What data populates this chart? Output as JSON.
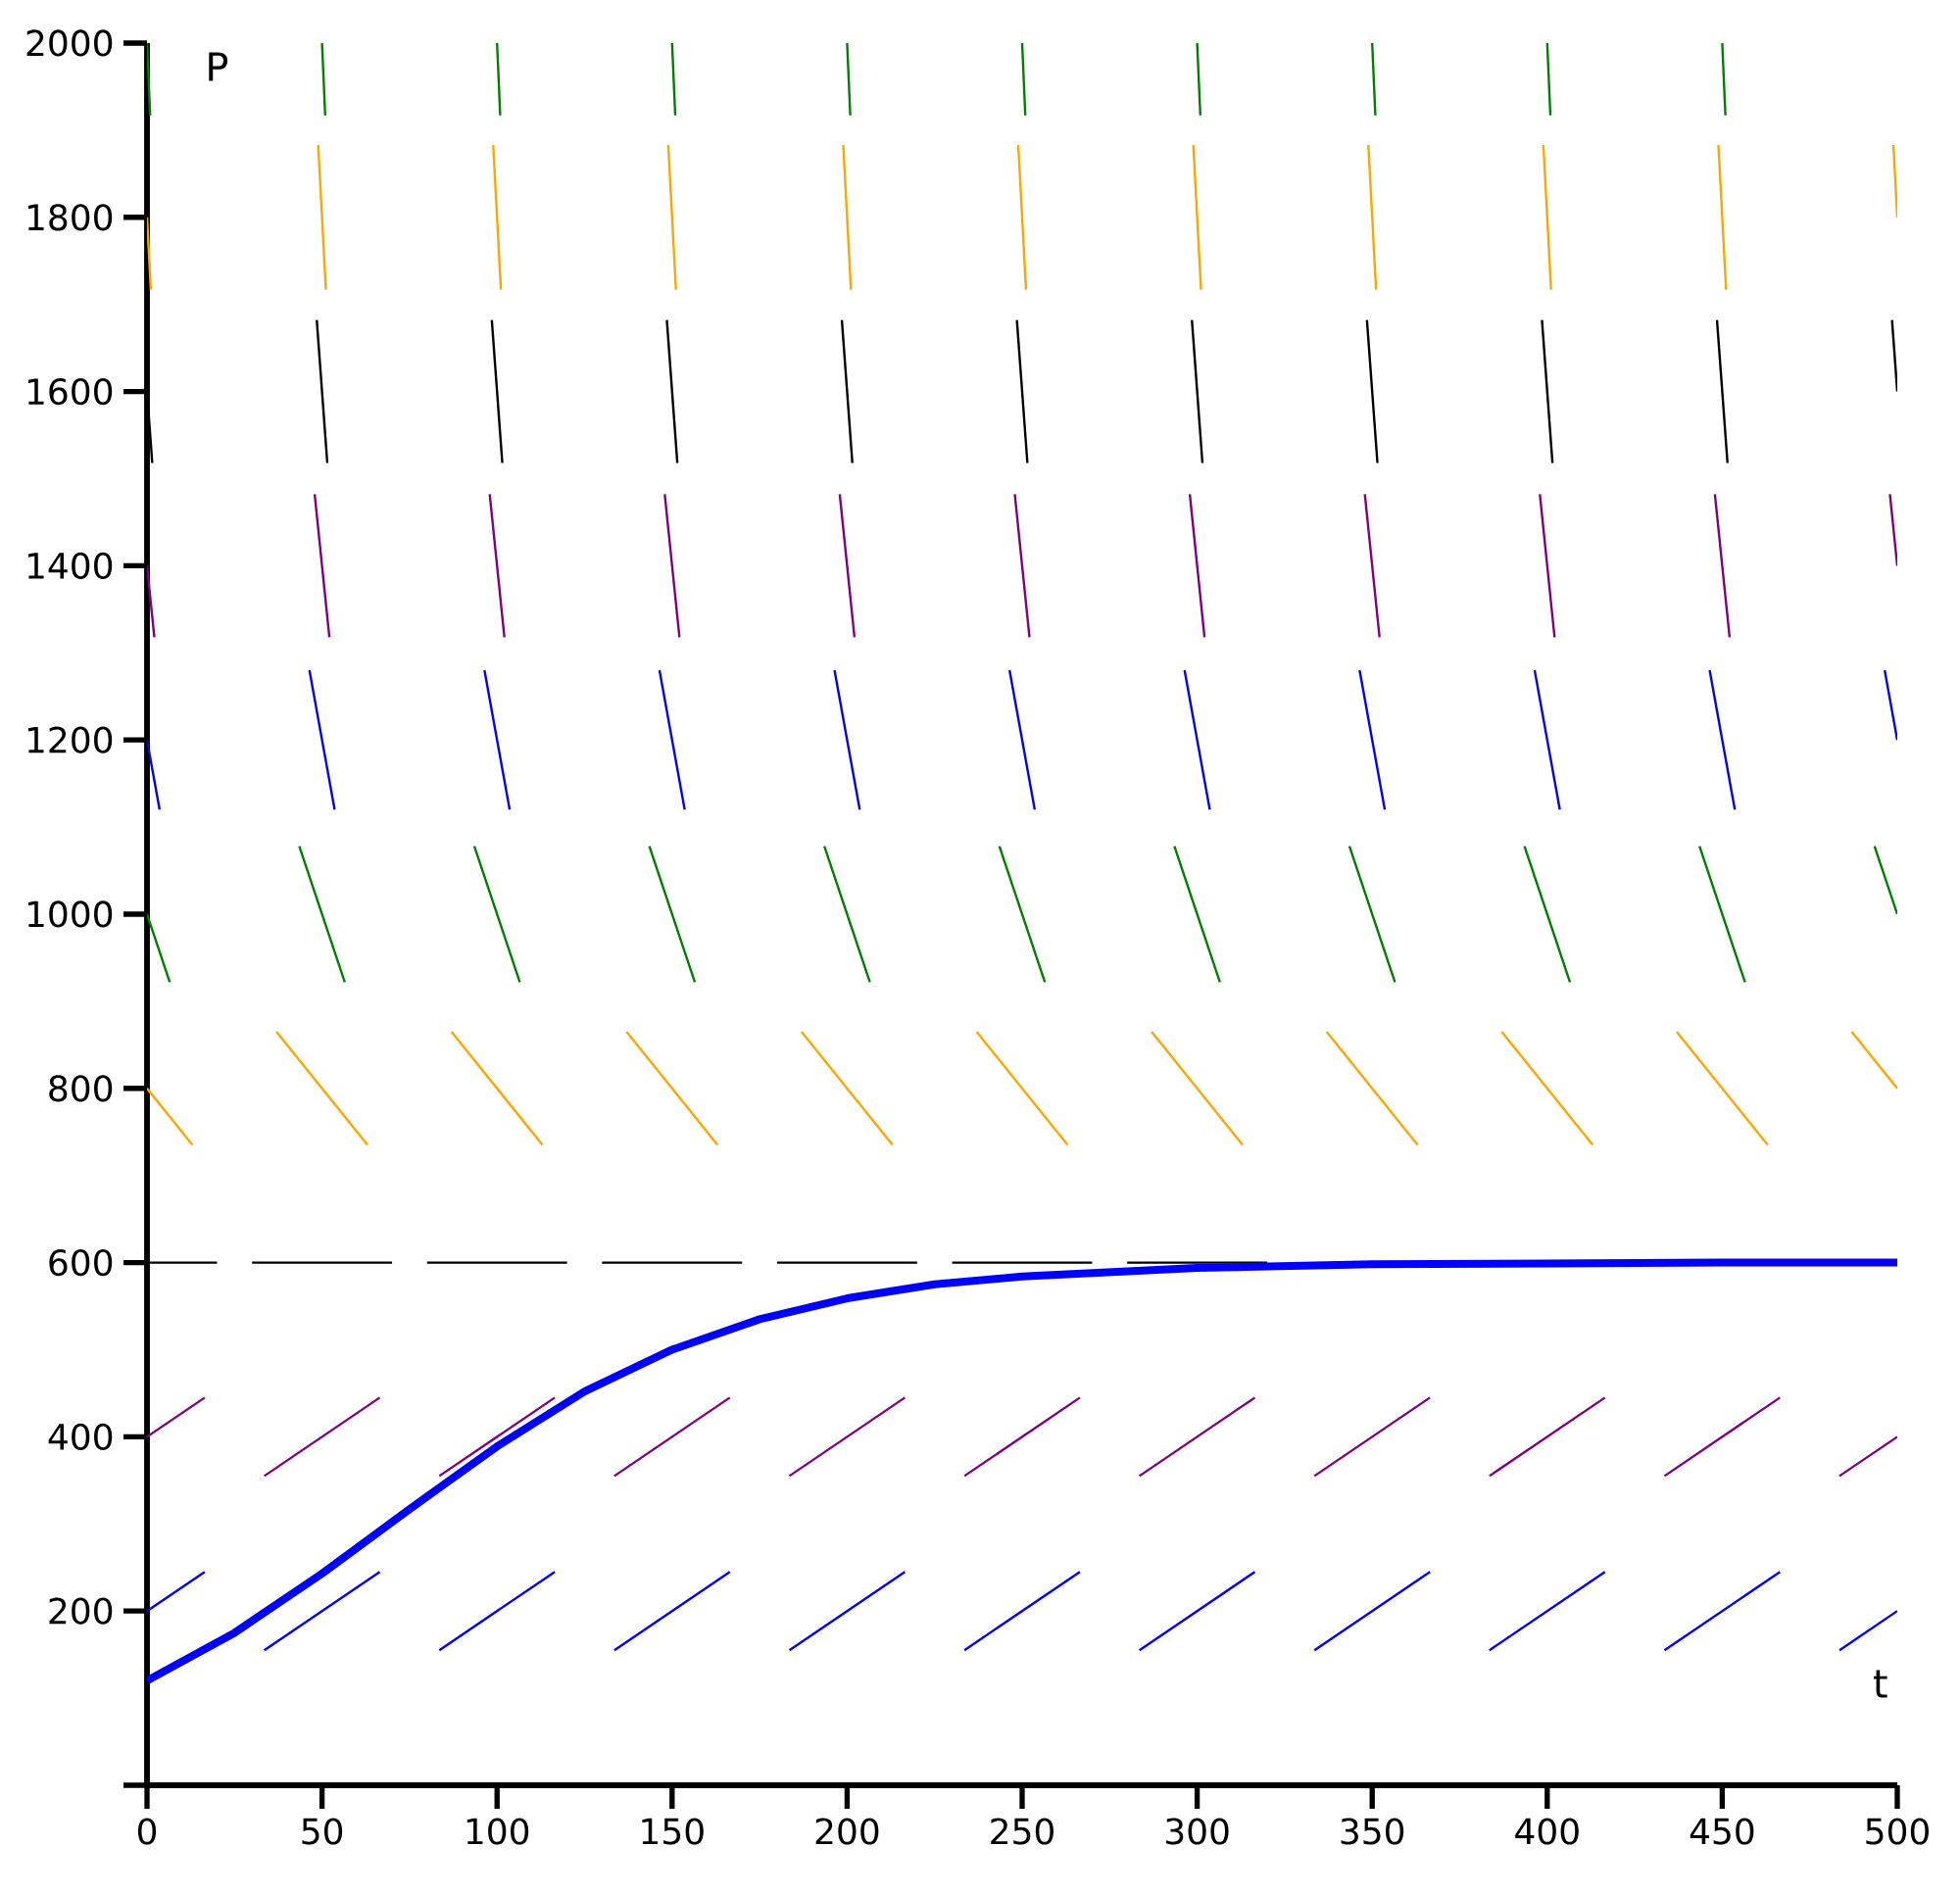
{
  "chart_data": {
    "type": "line",
    "xlabel": "t",
    "ylabel": "P",
    "xlim": [
      0,
      500
    ],
    "ylim": [
      0,
      2000
    ],
    "xticks": [
      {
        "value": 0,
        "label": "0"
      },
      50,
      100,
      150,
      200,
      250,
      300,
      350,
      400,
      450,
      500
    ],
    "yticks": [
      {
        "value": 0,
        "label": null
      },
      200,
      400,
      600,
      800,
      1000,
      1200,
      1400,
      1600,
      1800,
      2000
    ],
    "grid": false,
    "marker": "none",
    "line_style": "solid",
    "series": [
      {
        "color": "#0000ff",
        "x": [
          0,
          16.5,
          null,
          33.5,
          66.5,
          null,
          83.5,
          116.5,
          null,
          133.5,
          166.5,
          null,
          183.5,
          216.5,
          null,
          233.5,
          266.5,
          null,
          283.5,
          316.5,
          null,
          333.5,
          366.5,
          null,
          383.5,
          416.5,
          null,
          433.5,
          466.5,
          null,
          483.5,
          500
        ],
        "values": [
          200,
          245,
          null,
          155,
          245,
          null,
          155,
          245,
          null,
          155,
          245,
          null,
          155,
          245,
          null,
          155,
          245,
          null,
          155,
          245,
          null,
          155,
          245,
          null,
          155,
          245,
          null,
          155,
          245,
          null,
          155,
          200
        ]
      },
      {
        "color": "#800080",
        "x": [
          0,
          16.5,
          null,
          33.5,
          66.5,
          null,
          83.5,
          116.5,
          null,
          133.5,
          166.5,
          null,
          183.5,
          216.5,
          null,
          233.5,
          266.5,
          null,
          283.5,
          316.5,
          null,
          333.5,
          366.5,
          null,
          383.5,
          416.5,
          null,
          433.5,
          466.5,
          null,
          483.5,
          500
        ],
        "values": [
          400,
          445,
          null,
          355,
          445,
          null,
          355,
          445,
          null,
          355,
          445,
          null,
          355,
          445,
          null,
          355,
          445,
          null,
          355,
          445,
          null,
          355,
          445,
          null,
          355,
          445,
          null,
          355,
          445,
          null,
          355,
          400
        ]
      },
      {
        "color": "#000000",
        "x": [
          0,
          20,
          null,
          30,
          70,
          null,
          80,
          120,
          null,
          130,
          170,
          null,
          180,
          220,
          null,
          230,
          270,
          null,
          280,
          320
        ],
        "values": [
          600,
          600,
          null,
          600,
          600,
          null,
          600,
          600,
          null,
          600,
          600,
          null,
          600,
          600,
          null,
          600,
          600,
          null,
          600,
          600
        ]
      },
      {
        "color": "#ffa500",
        "x": [
          0,
          13,
          null,
          37,
          63,
          null,
          87,
          113,
          null,
          137,
          163,
          null,
          187,
          213,
          null,
          237,
          263,
          null,
          287,
          313,
          null,
          337,
          363,
          null,
          387,
          413,
          null,
          437,
          463,
          null,
          487,
          500
        ],
        "values": [
          800,
          735,
          null,
          865,
          735,
          null,
          865,
          735,
          null,
          865,
          735,
          null,
          865,
          735,
          null,
          865,
          735,
          null,
          865,
          735,
          null,
          865,
          735,
          null,
          865,
          735,
          null,
          865,
          735,
          null,
          865,
          800
        ]
      },
      {
        "color": "#008000",
        "x": [
          0,
          6.5,
          null,
          43.5,
          56.5,
          null,
          93.5,
          106.5,
          null,
          143.5,
          156.5,
          null,
          193.5,
          206.5,
          null,
          243.5,
          256.5,
          null,
          293.5,
          306.5,
          null,
          343.5,
          356.5,
          null,
          393.5,
          406.5,
          null,
          443.5,
          456.5,
          null,
          493.5,
          500
        ],
        "values": [
          1000,
          922,
          null,
          1078,
          922,
          null,
          1078,
          922,
          null,
          1078,
          922,
          null,
          1078,
          922,
          null,
          1078,
          922,
          null,
          1078,
          922,
          null,
          1078,
          922,
          null,
          1078,
          922,
          null,
          1078,
          922,
          null,
          1078,
          1000
        ]
      },
      {
        "color": "#0000ff",
        "x": [
          0,
          3.6,
          null,
          46.4,
          53.6,
          null,
          96.4,
          103.6,
          null,
          146.4,
          153.6,
          null,
          196.4,
          203.6,
          null,
          246.4,
          253.6,
          null,
          296.4,
          303.6,
          null,
          346.4,
          353.6,
          null,
          396.4,
          403.6,
          null,
          446.4,
          453.6,
          null,
          496.4,
          500
        ],
        "values": [
          1200,
          1120,
          null,
          1280,
          1120,
          null,
          1280,
          1120,
          null,
          1280,
          1120,
          null,
          1280,
          1120,
          null,
          1280,
          1120,
          null,
          1280,
          1120,
          null,
          1280,
          1120,
          null,
          1280,
          1120,
          null,
          1280,
          1120,
          null,
          1280,
          1200
        ]
      },
      {
        "color": "#800080",
        "x": [
          0,
          2.1,
          null,
          47.9,
          52.1,
          null,
          97.9,
          102.1,
          null,
          147.9,
          152.1,
          null,
          197.9,
          202.1,
          null,
          247.9,
          252.1,
          null,
          297.9,
          302.1,
          null,
          347.9,
          352.1,
          null,
          397.9,
          402.1,
          null,
          447.9,
          452.1,
          null,
          497.9,
          500
        ],
        "values": [
          1400,
          1318,
          null,
          1482,
          1318,
          null,
          1482,
          1318,
          null,
          1482,
          1318,
          null,
          1482,
          1318,
          null,
          1482,
          1318,
          null,
          1482,
          1318,
          null,
          1482,
          1318,
          null,
          1482,
          1318,
          null,
          1482,
          1318,
          null,
          1482,
          1400
        ]
      },
      {
        "color": "#000000",
        "x": [
          0,
          1.5,
          null,
          48.5,
          51.5,
          null,
          98.5,
          101.5,
          null,
          148.5,
          151.5,
          null,
          198.5,
          201.5,
          null,
          248.5,
          251.5,
          null,
          298.5,
          301.5,
          null,
          348.5,
          351.5,
          null,
          398.5,
          401.5,
          null,
          448.5,
          451.5,
          null,
          498.5,
          500
        ],
        "values": [
          1600,
          1518,
          null,
          1682,
          1518,
          null,
          1682,
          1518,
          null,
          1682,
          1518,
          null,
          1682,
          1518,
          null,
          1682,
          1518,
          null,
          1682,
          1518,
          null,
          1682,
          1518,
          null,
          1682,
          1518,
          null,
          1682,
          1518,
          null,
          1682,
          1600
        ]
      },
      {
        "color": "#ffa500",
        "x": [
          0,
          1.1,
          null,
          48.9,
          51.1,
          null,
          98.9,
          101.1,
          null,
          148.9,
          151.1,
          null,
          198.9,
          201.1,
          null,
          248.9,
          251.1,
          null,
          298.9,
          301.1,
          null,
          348.9,
          351.1,
          null,
          398.9,
          401.1,
          null,
          448.9,
          451.1,
          null,
          498.9,
          500
        ],
        "values": [
          1800,
          1717,
          null,
          1883,
          1717,
          null,
          1883,
          1717,
          null,
          1883,
          1717,
          null,
          1883,
          1717,
          null,
          1883,
          1717,
          null,
          1883,
          1717,
          null,
          1883,
          1717,
          null,
          1883,
          1717,
          null,
          1883,
          1717,
          null,
          1883,
          1800
        ]
      },
      {
        "color": "#008000",
        "x": [
          0,
          0.9,
          null,
          50,
          50.9,
          null,
          100,
          100.9,
          null,
          150,
          150.9,
          null,
          200,
          200.9,
          null,
          250,
          250.9,
          null,
          300,
          300.9,
          null,
          350,
          350.9,
          null,
          400,
          400.9,
          null,
          450,
          450.9
        ],
        "values": [
          2000,
          1917,
          null,
          2000,
          1917,
          null,
          2000,
          1917,
          null,
          2000,
          1917,
          null,
          2000,
          1917,
          null,
          2000,
          1917,
          null,
          2000,
          1917,
          null,
          2000,
          1917,
          null,
          2000,
          1917,
          null,
          2000,
          1917
        ]
      },
      {
        "color": "#0000ff",
        "x": [
          0,
          25,
          50,
          75,
          100,
          125,
          150,
          175,
          200,
          225,
          250,
          300,
          350,
          400,
          450,
          500
        ],
        "values": [
          120,
          175,
          243,
          317,
          389,
          452,
          500,
          535,
          559,
          575,
          584,
          594,
          598,
          599,
          600,
          600
        ]
      }
    ]
  }
}
